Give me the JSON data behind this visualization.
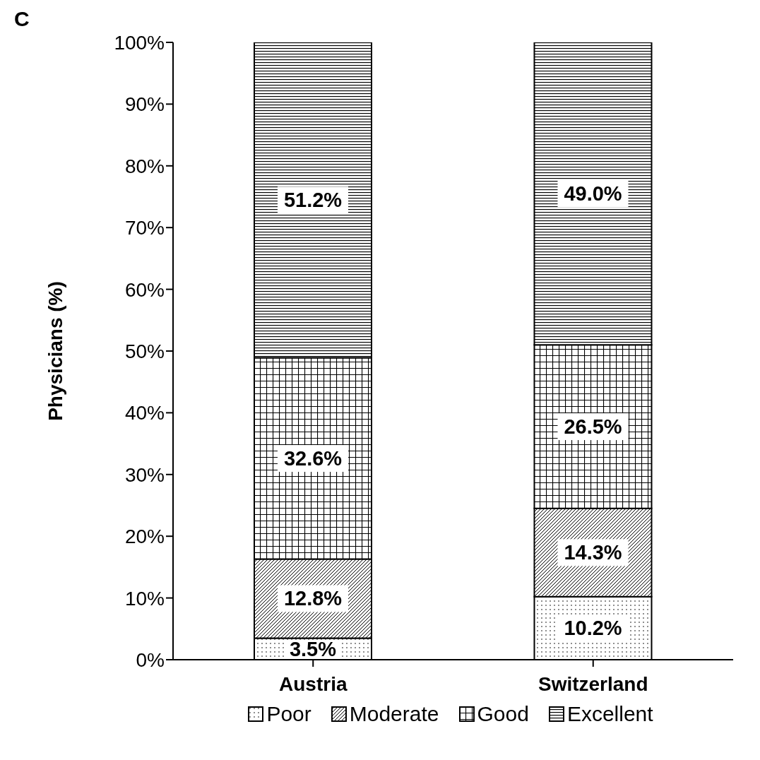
{
  "chart_data": {
    "type": "bar",
    "title": "C",
    "ylabel": "Physicians (%)",
    "categories": [
      "Austria",
      "Switzerland"
    ],
    "stacked": true,
    "ylim": [
      0,
      100
    ],
    "yticks": [
      {
        "value": 0,
        "label": "0%"
      },
      {
        "value": 10,
        "label": "10%"
      },
      {
        "value": 20,
        "label": "20%"
      },
      {
        "value": 30,
        "label": "30%"
      },
      {
        "value": 40,
        "label": "40%"
      },
      {
        "value": 50,
        "label": "50%"
      },
      {
        "value": 60,
        "label": "60%"
      },
      {
        "value": 70,
        "label": "70%"
      },
      {
        "value": 80,
        "label": "80%"
      },
      {
        "value": 90,
        "label": "90%"
      },
      {
        "value": 100,
        "label": "100%"
      }
    ],
    "series": [
      {
        "name": "Poor",
        "color": "#000000",
        "values": [
          3.5,
          10.2
        ],
        "value_labels": [
          "3.5%",
          "10.2%"
        ]
      },
      {
        "name": "Moderate",
        "color": "#000000",
        "values": [
          12.8,
          14.3
        ],
        "value_labels": [
          "12.8%",
          "14.3%"
        ]
      },
      {
        "name": "Good",
        "color": "#000000",
        "values": [
          32.6,
          26.5
        ],
        "value_labels": [
          "32.6%",
          "26.5%"
        ]
      },
      {
        "name": "Excellent",
        "color": "#000000",
        "values": [
          51.2,
          49.0
        ],
        "value_labels": [
          "51.2%",
          "49.0%"
        ]
      }
    ],
    "legend": "bottom",
    "grid": false
  }
}
